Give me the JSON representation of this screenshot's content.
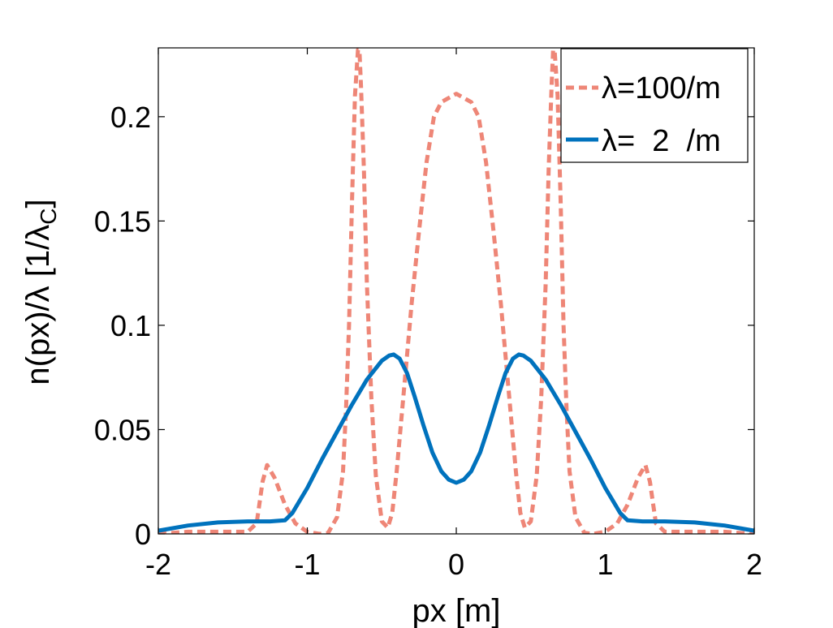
{
  "chart_data": {
    "type": "line",
    "title": "",
    "xlabel": "px [m]",
    "ylabel": {
      "main": "n(px)/λ [1/λ",
      "sub": "C",
      "close": "]"
    },
    "xlim": [
      -2,
      2
    ],
    "ylim": [
      0,
      0.233
    ],
    "xticks": [
      -2,
      -1,
      0,
      1,
      2
    ],
    "xtick_labels": [
      "-2",
      "-1",
      "0",
      "1",
      "2"
    ],
    "yticks": [
      0,
      0.05,
      0.1,
      0.15,
      0.2
    ],
    "ytick_labels": [
      "0",
      "0.05",
      "0.1",
      "0.15",
      "0.2"
    ],
    "grid": false,
    "legend_position": "top-right",
    "series": [
      {
        "name": "λ=100/m",
        "color": "#ee8677",
        "style": "dashed",
        "x": [
          -2.0,
          -1.8,
          -1.5,
          -1.4,
          -1.34,
          -1.3,
          -1.27,
          -1.22,
          -1.15,
          -1.08,
          -1.0,
          -0.92,
          -0.86,
          -0.8,
          -0.76,
          -0.74,
          -0.72,
          -0.7,
          -0.68,
          -0.66,
          -0.65,
          -0.64,
          -0.62,
          -0.6,
          -0.57,
          -0.54,
          -0.5,
          -0.46,
          -0.43,
          -0.4,
          -0.35,
          -0.3,
          -0.25,
          -0.2,
          -0.15,
          -0.1,
          -0.05,
          0.0,
          0.05,
          0.1,
          0.15,
          0.2,
          0.25,
          0.3,
          0.35,
          0.4,
          0.43,
          0.46,
          0.5,
          0.54,
          0.57,
          0.6,
          0.62,
          0.64,
          0.65,
          0.66,
          0.68,
          0.7,
          0.72,
          0.74,
          0.76,
          0.8,
          0.86,
          0.92,
          1.0,
          1.08,
          1.15,
          1.22,
          1.27,
          1.3,
          1.34,
          1.4,
          1.5,
          1.8,
          2.0
        ],
        "y": [
          0.0,
          0.001,
          0.001,
          0.001,
          0.005,
          0.025,
          0.033,
          0.027,
          0.014,
          0.005,
          0.001,
          0.0,
          0.0005,
          0.008,
          0.03,
          0.06,
          0.1,
          0.16,
          0.21,
          0.232,
          0.232,
          0.215,
          0.175,
          0.12,
          0.065,
          0.028,
          0.006,
          0.003,
          0.01,
          0.03,
          0.07,
          0.11,
          0.145,
          0.178,
          0.2,
          0.207,
          0.209,
          0.211,
          0.209,
          0.207,
          0.2,
          0.178,
          0.145,
          0.11,
          0.07,
          0.03,
          0.01,
          0.003,
          0.006,
          0.028,
          0.065,
          0.12,
          0.175,
          0.215,
          0.232,
          0.232,
          0.21,
          0.16,
          0.1,
          0.06,
          0.03,
          0.008,
          0.0005,
          0.0,
          0.001,
          0.005,
          0.014,
          0.027,
          0.033,
          0.025,
          0.005,
          0.001,
          0.001,
          0.001,
          0.0
        ]
      },
      {
        "name": "λ=  2  /m",
        "color": "#0072bd",
        "style": "solid",
        "x": [
          -2.0,
          -1.8,
          -1.6,
          -1.4,
          -1.25,
          -1.15,
          -1.1,
          -1.0,
          -0.9,
          -0.8,
          -0.7,
          -0.6,
          -0.5,
          -0.45,
          -0.42,
          -0.38,
          -0.33,
          -0.28,
          -0.22,
          -0.16,
          -0.1,
          -0.05,
          0.0,
          0.05,
          0.1,
          0.16,
          0.22,
          0.28,
          0.33,
          0.38,
          0.42,
          0.45,
          0.5,
          0.6,
          0.7,
          0.8,
          0.9,
          1.0,
          1.1,
          1.15,
          1.25,
          1.4,
          1.6,
          1.8,
          2.0
        ],
        "y": [
          0.0015,
          0.004,
          0.0055,
          0.006,
          0.006,
          0.0065,
          0.01,
          0.022,
          0.036,
          0.049,
          0.062,
          0.074,
          0.083,
          0.0855,
          0.086,
          0.084,
          0.077,
          0.066,
          0.052,
          0.039,
          0.03,
          0.026,
          0.0245,
          0.026,
          0.03,
          0.039,
          0.052,
          0.066,
          0.077,
          0.084,
          0.086,
          0.0855,
          0.083,
          0.074,
          0.062,
          0.049,
          0.036,
          0.022,
          0.01,
          0.0065,
          0.006,
          0.006,
          0.0055,
          0.004,
          0.0015
        ]
      }
    ]
  }
}
